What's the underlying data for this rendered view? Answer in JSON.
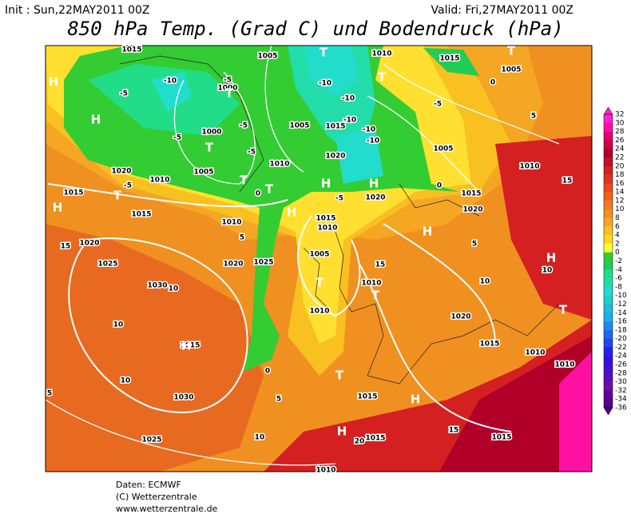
{
  "header": {
    "init": "Init : Sun,22MAY2011 00Z",
    "valid": "Valid: Fri,27MAY2011 00Z",
    "title": "850 hPa Temp. (Grad C) und Bodendruck (hPa)"
  },
  "legend": {
    "ticks": [
      32,
      30,
      28,
      26,
      24,
      22,
      20,
      18,
      16,
      14,
      12,
      10,
      8,
      6,
      4,
      2,
      0,
      -2,
      -4,
      -6,
      -8,
      -10,
      -12,
      -14,
      -16,
      -18,
      -20,
      -22,
      -24,
      -26,
      -28,
      -30,
      -32,
      -34,
      -36
    ],
    "colors": [
      "#ff20d0",
      "#ff10a0",
      "#e6006e",
      "#cc0044",
      "#b0002a",
      "#c0102a",
      "#d42020",
      "#e03020",
      "#e84a20",
      "#f06020",
      "#f07a20",
      "#f09020",
      "#f5a623",
      "#f8c020",
      "#ffd820",
      "#ffff33",
      "#33cc33",
      "#22cc55",
      "#22dd88",
      "#22ddaa",
      "#22ddcc",
      "#22cccc",
      "#22bbdd",
      "#22aaee",
      "#2288ee",
      "#2266ee",
      "#2244ee",
      "#2222ee",
      "#3311dd",
      "#4411cc",
      "#5511bb",
      "#6611aa",
      "#660099",
      "#550088"
    ]
  },
  "map_labels": [
    "1015",
    "1005",
    "1000",
    "1000",
    "1005",
    "1010",
    "1005",
    "1015",
    "1020",
    "1010",
    "1015",
    "1005",
    "1005",
    "1010",
    "1015",
    "1020",
    "1020",
    "1015",
    "1010",
    "1005",
    "1010",
    "1010",
    "1015",
    "1015",
    "1010",
    "1010",
    "1020",
    "1025",
    "1025",
    "1020",
    "1030",
    "1015",
    "1030",
    "1025",
    "1015",
    "1015",
    "1020",
    "1015",
    "1010",
    "1010",
    "1015",
    "1010",
    "1020",
    "-5",
    "-10",
    "-5",
    "-10",
    "-10",
    "-10",
    "-10",
    "-10",
    "-5",
    "-5",
    "-5",
    "-5",
    "0",
    "-5",
    "-5",
    "0",
    "5",
    "0",
    "5",
    "5",
    "15",
    "15",
    "15",
    "10",
    "10",
    "10",
    "10",
    "0",
    "5",
    "10",
    "5",
    "10",
    "15",
    "20",
    "H",
    "H",
    "T",
    "T",
    "T",
    "T",
    "T",
    "H",
    "T",
    "H",
    "H",
    "H",
    "H",
    "H",
    "T",
    "T",
    "T",
    "T",
    "H",
    "H",
    "H",
    "T",
    "T"
  ],
  "footer": [
    "Daten: ECMWF",
    "(C) Wetterzentrale",
    "www.wetterzentrale.de"
  ]
}
